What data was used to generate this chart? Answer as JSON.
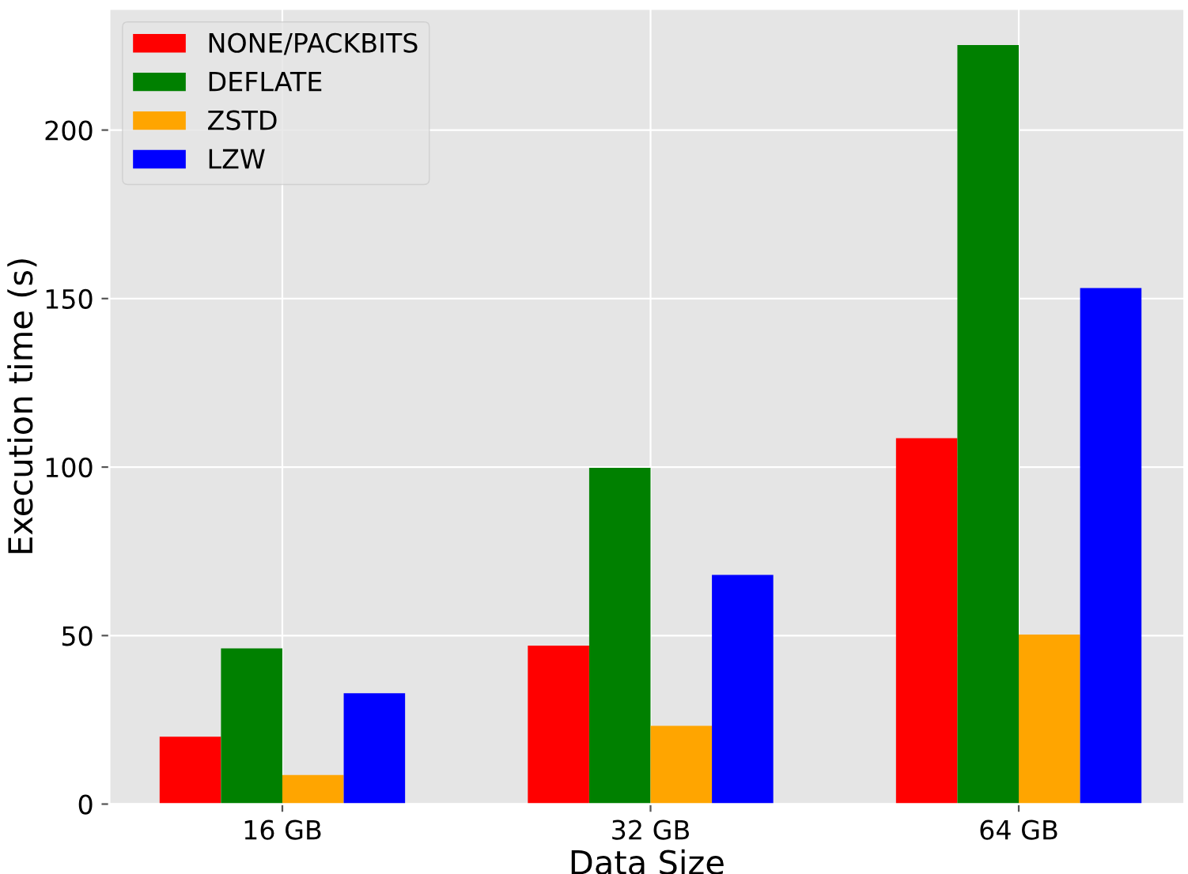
{
  "chart_data": {
    "type": "bar",
    "xlabel": "Data Size",
    "ylabel": "Execution time (s)",
    "categories": [
      "16 GB",
      "32 GB",
      "64 GB"
    ],
    "series": [
      {
        "name": "NONE/PACKBITS",
        "color": "#ff0000",
        "values": [
          20,
          47,
          108.6
        ]
      },
      {
        "name": "DEFLATE",
        "color": "#008000",
        "values": [
          46.2,
          99.8,
          225.2
        ]
      },
      {
        "name": "ZSTD",
        "color": "#ffa500",
        "values": [
          8.6,
          23.2,
          50.3
        ]
      },
      {
        "name": "LZW",
        "color": "#0000ff",
        "values": [
          32.9,
          68,
          153.1
        ]
      }
    ],
    "ylim": [
      0,
      236
    ],
    "yticks": [
      0,
      50,
      100,
      150,
      200
    ],
    "grid": true,
    "legend": "top left"
  }
}
